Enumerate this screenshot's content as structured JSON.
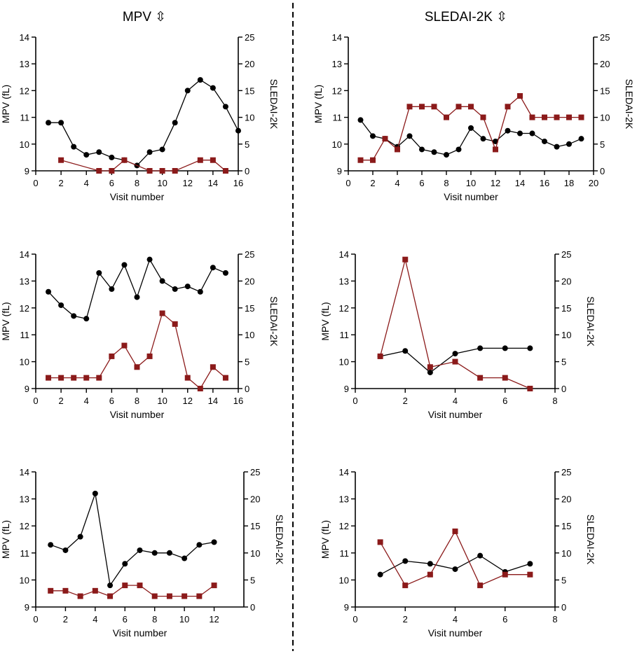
{
  "column_titles": [
    "MPV ⇳",
    "SLEDAI-2K ⇳"
  ],
  "colors": {
    "mpv": "#000000",
    "sledai": "#8b1a1a"
  },
  "chart_data": [
    {
      "type": "line",
      "xlabel": "Visit number",
      "ylabel": "MPV (fL)",
      "y2label": "SLEDAI-2K",
      "xlim": [
        0,
        16
      ],
      "xticks": [
        0,
        2,
        4,
        6,
        8,
        10,
        12,
        14,
        16
      ],
      "ylim": [
        9,
        14
      ],
      "yticks": [
        9,
        10,
        11,
        12,
        13,
        14
      ],
      "y2lim": [
        0,
        25
      ],
      "y2ticks": [
        0,
        5,
        10,
        15,
        20,
        25
      ],
      "series": [
        {
          "name": "MPV",
          "axis": "left",
          "marker": "circle",
          "x": [
            1,
            2,
            3,
            4,
            5,
            6,
            7,
            8,
            9,
            10,
            11,
            12,
            13,
            14,
            15,
            16
          ],
          "y": [
            10.8,
            10.8,
            9.9,
            9.6,
            9.7,
            9.5,
            9.4,
            9.2,
            9.7,
            9.8,
            10.8,
            12.0,
            12.4,
            12.1,
            11.4,
            10.5
          ]
        },
        {
          "name": "SLEDAI-2K",
          "axis": "right",
          "marker": "square",
          "x": [
            2,
            5,
            6,
            7,
            9,
            10,
            11,
            13,
            14,
            15
          ],
          "y": [
            2,
            0,
            0,
            2,
            0,
            0,
            0,
            2,
            2,
            0
          ]
        }
      ]
    },
    {
      "type": "line",
      "xlabel": "Visit number",
      "ylabel": "MPV (fL)",
      "y2label": "SLEDAI-2K",
      "xlim": [
        0,
        20
      ],
      "xticks": [
        0,
        2,
        4,
        6,
        8,
        10,
        12,
        14,
        16,
        18,
        20
      ],
      "ylim": [
        9,
        14
      ],
      "yticks": [
        9,
        10,
        11,
        12,
        13,
        14
      ],
      "y2lim": [
        0,
        25
      ],
      "y2ticks": [
        0,
        5,
        10,
        15,
        20,
        25
      ],
      "series": [
        {
          "name": "MPV",
          "axis": "left",
          "marker": "circle",
          "x": [
            1,
            2,
            3,
            4,
            5,
            6,
            7,
            8,
            9,
            10,
            11,
            12,
            13,
            14,
            15,
            16,
            17,
            18,
            19
          ],
          "y": [
            10.9,
            10.3,
            10.2,
            9.9,
            10.3,
            9.8,
            9.7,
            9.6,
            9.8,
            10.6,
            10.2,
            10.1,
            10.5,
            10.4,
            10.4,
            10.1,
            9.9,
            10.0,
            10.2
          ]
        },
        {
          "name": "SLEDAI-2K",
          "axis": "right",
          "marker": "square",
          "x": [
            1,
            2,
            3,
            4,
            5,
            6,
            7,
            8,
            9,
            10,
            11,
            12,
            13,
            14,
            15,
            16,
            17,
            18,
            19
          ],
          "y": [
            2,
            2,
            6,
            4,
            12,
            12,
            12,
            10,
            12,
            12,
            10,
            4,
            12,
            14,
            10,
            10,
            10,
            10,
            10
          ]
        }
      ]
    },
    {
      "type": "line",
      "xlabel": "Visit number",
      "ylabel": "MPV (fL)",
      "y2label": "SLEDAI-2K",
      "xlim": [
        0,
        16
      ],
      "xticks": [
        0,
        2,
        4,
        6,
        8,
        10,
        12,
        14,
        16
      ],
      "ylim": [
        9,
        14
      ],
      "yticks": [
        9,
        10,
        11,
        12,
        13,
        14
      ],
      "y2lim": [
        0,
        25
      ],
      "y2ticks": [
        0,
        5,
        10,
        15,
        20,
        25
      ],
      "series": [
        {
          "name": "MPV",
          "axis": "left",
          "marker": "circle",
          "x": [
            1,
            2,
            3,
            4,
            5,
            6,
            7,
            8,
            9,
            10,
            11,
            12,
            13,
            14,
            15
          ],
          "y": [
            12.6,
            12.1,
            11.7,
            11.6,
            13.3,
            12.7,
            13.6,
            12.4,
            13.8,
            13.0,
            12.7,
            12.8,
            12.6,
            13.5,
            13.3
          ]
        },
        {
          "name": "SLEDAI-2K",
          "axis": "right",
          "marker": "square",
          "x": [
            1,
            2,
            3,
            4,
            5,
            6,
            7,
            8,
            9,
            10,
            11,
            12,
            13,
            14,
            15
          ],
          "y": [
            2,
            2,
            2,
            2,
            2,
            6,
            8,
            4,
            6,
            14,
            12,
            2,
            0,
            4,
            2
          ]
        }
      ]
    },
    {
      "type": "line",
      "xlabel": "Visit number",
      "ylabel": "MPV (fL)",
      "y2label": "SLEDAI-2K",
      "xlim": [
        0,
        8
      ],
      "xticks": [
        0,
        2,
        4,
        6,
        8
      ],
      "ylim": [
        9,
        14
      ],
      "yticks": [
        9,
        10,
        11,
        12,
        13,
        14
      ],
      "y2lim": [
        0,
        25
      ],
      "y2ticks": [
        0,
        5,
        10,
        15,
        20,
        25
      ],
      "series": [
        {
          "name": "MPV",
          "axis": "left",
          "marker": "circle",
          "x": [
            1,
            2,
            3,
            4,
            5,
            6,
            7
          ],
          "y": [
            10.2,
            10.4,
            9.6,
            10.3,
            10.5,
            10.5,
            10.5
          ]
        },
        {
          "name": "SLEDAI-2K",
          "axis": "right",
          "marker": "square",
          "x": [
            1,
            2,
            3,
            4,
            5,
            6,
            7
          ],
          "y": [
            6,
            24,
            4,
            5,
            2,
            2,
            0
          ]
        }
      ]
    },
    {
      "type": "line",
      "xlabel": "Visit number",
      "ylabel": "MPV (fL)",
      "y2label": "SLEDAI-2K",
      "xlim": [
        0,
        14
      ],
      "xticks": [
        0,
        2,
        4,
        6,
        8,
        10,
        12
      ],
      "ylim": [
        9,
        14
      ],
      "yticks": [
        9,
        10,
        11,
        12,
        13,
        14
      ],
      "y2lim": [
        0,
        25
      ],
      "y2ticks": [
        0,
        5,
        10,
        15,
        20,
        25
      ],
      "series": [
        {
          "name": "MPV",
          "axis": "left",
          "marker": "circle",
          "x": [
            1,
            2,
            3,
            4,
            5,
            6,
            7,
            8,
            9,
            10,
            11,
            12
          ],
          "y": [
            11.3,
            11.1,
            11.6,
            13.2,
            9.8,
            10.6,
            11.1,
            11.0,
            11.0,
            10.8,
            11.3,
            11.4
          ]
        },
        {
          "name": "SLEDAI-2K",
          "axis": "right",
          "marker": "square",
          "x": [
            1,
            2,
            3,
            4,
            5,
            6,
            7,
            8,
            9,
            10,
            11,
            12
          ],
          "y": [
            3,
            3,
            2,
            3,
            2,
            4,
            4,
            2,
            2,
            2,
            2,
            4
          ]
        }
      ]
    },
    {
      "type": "line",
      "xlabel": "Visit number",
      "ylabel": "MPV (fL)",
      "y2label": "SLEDAI-2K",
      "xlim": [
        0,
        8
      ],
      "xticks": [
        0,
        2,
        4,
        6,
        8
      ],
      "ylim": [
        9,
        14
      ],
      "yticks": [
        9,
        10,
        11,
        12,
        13,
        14
      ],
      "y2lim": [
        0,
        25
      ],
      "y2ticks": [
        0,
        5,
        10,
        15,
        20,
        25
      ],
      "series": [
        {
          "name": "MPV",
          "axis": "left",
          "marker": "circle",
          "x": [
            1,
            2,
            3,
            4,
            5,
            6,
            7
          ],
          "y": [
            10.2,
            10.7,
            10.6,
            10.4,
            10.9,
            10.3,
            10.6
          ]
        },
        {
          "name": "SLEDAI-2K",
          "axis": "right",
          "marker": "square",
          "x": [
            1,
            2,
            3,
            4,
            5,
            6,
            7
          ],
          "y": [
            12,
            4,
            6,
            14,
            4,
            6,
            6
          ]
        }
      ]
    }
  ]
}
